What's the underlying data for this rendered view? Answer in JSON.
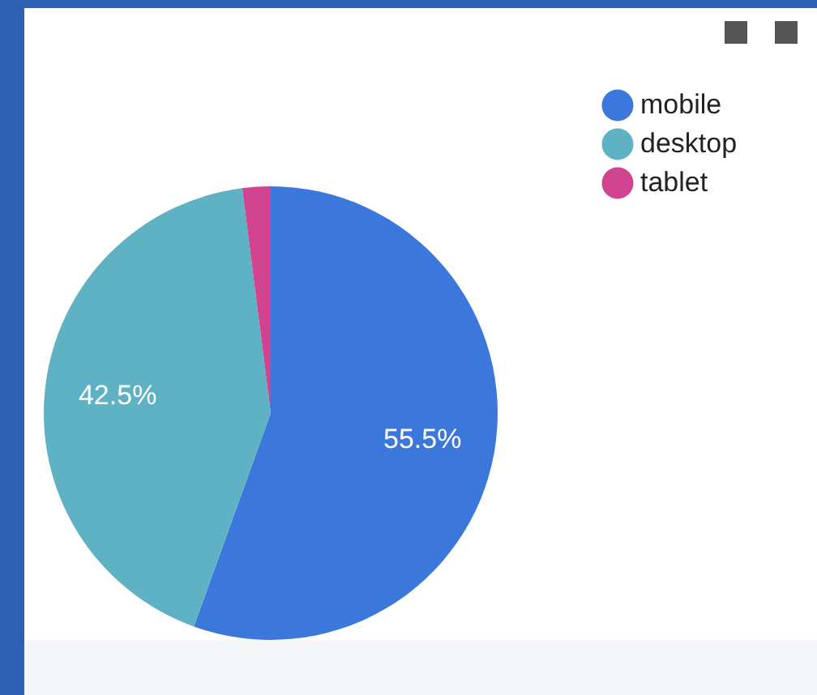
{
  "chart_data": {
    "type": "pie",
    "categories": [
      "mobile",
      "desktop",
      "tablet"
    ],
    "values": [
      55.5,
      42.5,
      2.0
    ],
    "colors": [
      "#3c78dc",
      "#5fb1c4",
      "#d0448f"
    ],
    "value_labels": [
      "55.5%",
      "42.5%",
      null
    ],
    "legend": "top right"
  }
}
